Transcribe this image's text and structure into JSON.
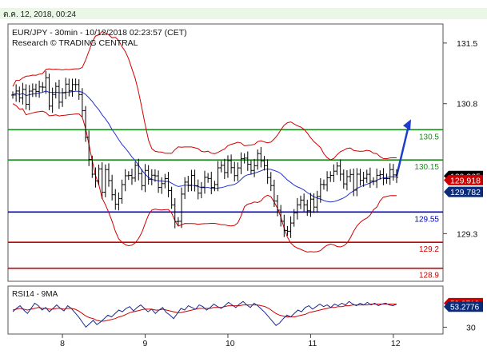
{
  "header": {
    "timestamp": "ต.ค. 12, 2018, 00:24"
  },
  "chart_data": {
    "type": "line",
    "symbol_line": "EUR/JPY - 30min - 10/12/2018 02:23:57 (CET)",
    "research_line": "Research © TRADING CENTRAL",
    "y_ticks": [
      131.5,
      130.8,
      129.3
    ],
    "y_range": [
      128.75,
      131.72
    ],
    "x_tick_labels": [
      "8",
      "9",
      "10",
      "11",
      "12"
    ],
    "x_ticks_at_index": [
      15,
      40,
      65,
      90,
      115
    ],
    "bar_count": 117,
    "levels": [
      {
        "value": 130.5,
        "label": "130.5",
        "color": "#1a8a1a"
      },
      {
        "value": 130.15,
        "label": "130.15",
        "color": "#1a8a1a"
      },
      {
        "value": 129.55,
        "label": "129.55",
        "color": "#0000cc"
      },
      {
        "value": 129.2,
        "label": "129.2",
        "color": "#cc0000"
      },
      {
        "value": 128.9,
        "label": "128.9",
        "color": "#cc0000"
      }
    ],
    "price_badges": [
      {
        "value": 129.965,
        "label": "129.965",
        "bg": "#000000"
      },
      {
        "value": 129.918,
        "label": "129.918",
        "bg": "#cc0000"
      },
      {
        "value": 129.782,
        "label": "129.782",
        "bg": "#0a2a7a"
      }
    ],
    "close_path": [
      130.9,
      130.95,
      130.85,
      131.0,
      130.7,
      131.1,
      130.85,
      131.05,
      130.9,
      131.2,
      130.75,
      130.9,
      131.0,
      130.8,
      130.95,
      131.05,
      130.9,
      131.1,
      130.95,
      130.85,
      130.5,
      130.2,
      130.0,
      129.9,
      130.05,
      129.75,
      130.1,
      129.85,
      129.7,
      129.6,
      129.8,
      129.95,
      130.0,
      129.9,
      130.1,
      130.0,
      129.85,
      130.05,
      129.9,
      130.0,
      129.95,
      129.75,
      130.0,
      129.85,
      129.7,
      129.45,
      129.4,
      129.75,
      129.9,
      129.85,
      130.0,
      129.8,
      129.75,
      129.9,
      130.0,
      129.85,
      129.8,
      130.05,
      130.1,
      130.0,
      130.15,
      130.05,
      129.95,
      130.1,
      130.2,
      130.15,
      130.05,
      130.0,
      130.25,
      130.15,
      130.1,
      129.95,
      129.85,
      129.65,
      129.55,
      129.4,
      129.3,
      129.35,
      129.5,
      129.6,
      129.7,
      129.65,
      129.55,
      129.7,
      129.6,
      129.75,
      129.9,
      129.85,
      130.0,
      129.95,
      130.1,
      130.05,
      129.85,
      129.95,
      130.0,
      129.8,
      130.0,
      129.9,
      129.95,
      130.0,
      129.85,
      129.95,
      130.0,
      129.95,
      129.9,
      130.05,
      129.98,
      129.95
    ],
    "projection": {
      "from": 129.965,
      "to": 130.62
    },
    "rsi": {
      "label": "RSI14 - 9MA",
      "y_range": [
        22,
        78
      ],
      "y_ticks": [
        30
      ],
      "values": [
        48,
        52,
        55,
        50,
        46,
        52,
        58,
        55,
        50,
        53,
        48,
        52,
        56,
        52,
        49,
        55,
        52,
        47,
        42,
        36,
        30,
        34,
        38,
        33,
        36,
        40,
        44,
        42,
        46,
        50,
        48,
        52,
        54,
        49,
        53,
        56,
        52,
        48,
        51,
        46,
        50,
        53,
        47,
        44,
        40,
        46,
        52,
        50,
        55,
        53,
        51,
        56,
        54,
        50,
        53,
        57,
        54,
        52,
        55,
        59,
        56,
        53,
        57,
        60,
        56,
        53,
        58,
        55,
        51,
        47,
        42,
        37,
        32,
        35,
        40,
        44,
        42,
        46,
        50,
        48,
        53,
        55,
        51,
        54,
        57,
        54,
        56,
        53,
        57,
        55,
        58,
        56,
        60,
        57,
        55,
        58,
        56,
        59,
        56,
        58,
        55,
        57,
        58,
        56,
        55,
        57
      ],
      "ma": [
        50,
        51,
        52,
        51,
        50,
        51,
        52,
        53,
        52,
        52,
        51,
        51,
        52,
        52,
        51,
        52,
        52,
        51,
        49,
        46,
        43,
        41,
        40,
        38,
        37,
        37,
        38,
        39,
        40,
        42,
        43,
        45,
        47,
        48,
        49,
        50,
        51,
        51,
        51,
        50,
        50,
        51,
        50,
        49,
        48,
        47,
        47,
        48,
        49,
        50,
        51,
        52,
        52,
        52,
        52,
        53,
        53,
        53,
        54,
        55,
        55,
        55,
        55,
        56,
        56,
        56,
        56,
        56,
        55,
        54,
        52,
        49,
        46,
        44,
        43,
        42,
        42,
        42,
        43,
        44,
        45,
        47,
        48,
        49,
        50,
        51,
        52,
        53,
        53,
        54,
        54,
        55,
        55,
        56,
        56,
        56,
        56,
        56,
        57,
        57,
        57,
        57,
        57,
        57,
        57,
        57
      ],
      "badges": [
        {
          "value": 58,
          "label": "53.3718",
          "bg": "#cc0000"
        },
        {
          "value": 54,
          "label": "53.2776",
          "bg": "#0a2a7a"
        }
      ]
    }
  }
}
